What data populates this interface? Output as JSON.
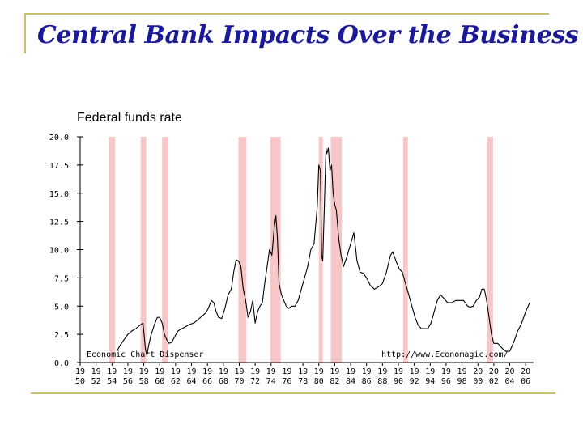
{
  "slide": {
    "title": "Central Bank Impacts Over the Business Cycle"
  },
  "colors": {
    "title": "#1a1a99",
    "rule": "#c9c16a",
    "recession": "#f7c6c6",
    "line": "#000000"
  },
  "chart_data": {
    "type": "line",
    "title": "Federal funds rate",
    "xlabel": "",
    "ylabel": "",
    "xlim": [
      1950,
      2007
    ],
    "ylim": [
      0,
      20
    ],
    "grid": false,
    "yticks": [
      "0.0",
      "2.5",
      "5.0",
      "7.5",
      "10.0",
      "12.5",
      "15.0",
      "17.5",
      "20.0"
    ],
    "xticks": [
      {
        "top": "19",
        "bottom": "50"
      },
      {
        "top": "19",
        "bottom": "52"
      },
      {
        "top": "19",
        "bottom": "54"
      },
      {
        "top": "19",
        "bottom": "56"
      },
      {
        "top": "19",
        "bottom": "58"
      },
      {
        "top": "19",
        "bottom": "60"
      },
      {
        "top": "19",
        "bottom": "62"
      },
      {
        "top": "19",
        "bottom": "64"
      },
      {
        "top": "19",
        "bottom": "66"
      },
      {
        "top": "19",
        "bottom": "68"
      },
      {
        "top": "19",
        "bottom": "70"
      },
      {
        "top": "19",
        "bottom": "72"
      },
      {
        "top": "19",
        "bottom": "74"
      },
      {
        "top": "19",
        "bottom": "76"
      },
      {
        "top": "19",
        "bottom": "78"
      },
      {
        "top": "19",
        "bottom": "80"
      },
      {
        "top": "19",
        "bottom": "82"
      },
      {
        "top": "19",
        "bottom": "84"
      },
      {
        "top": "19",
        "bottom": "86"
      },
      {
        "top": "19",
        "bottom": "88"
      },
      {
        "top": "19",
        "bottom": "90"
      },
      {
        "top": "19",
        "bottom": "92"
      },
      {
        "top": "19",
        "bottom": "94"
      },
      {
        "top": "19",
        "bottom": "96"
      },
      {
        "top": "19",
        "bottom": "98"
      },
      {
        "top": "20",
        "bottom": "00"
      },
      {
        "top": "20",
        "bottom": "02"
      },
      {
        "top": "20",
        "bottom": "04"
      },
      {
        "top": "20",
        "bottom": "06"
      }
    ],
    "annotations": {
      "source_left": "Economic Chart Dispenser",
      "source_right": "http://www.Economagic.com/"
    },
    "recessions": [
      [
        1953.6,
        1954.4
      ],
      [
        1957.6,
        1958.3
      ],
      [
        1960.3,
        1961.1
      ],
      [
        1969.9,
        1970.9
      ],
      [
        1973.9,
        1975.2
      ],
      [
        1980.0,
        1980.5
      ],
      [
        1981.5,
        1982.9
      ],
      [
        1990.6,
        1991.2
      ],
      [
        2001.2,
        2001.9
      ]
    ],
    "series": [
      {
        "x": [
          1954.6,
          1955.0,
          1955.5,
          1956.0,
          1956.5,
          1957.0,
          1957.5,
          1957.9,
          1958.2,
          1958.4,
          1958.6,
          1958.9,
          1959.3,
          1959.7,
          1960.0,
          1960.3,
          1960.6,
          1960.9,
          1961.2,
          1961.5,
          1961.9,
          1962.3,
          1962.8,
          1963.3,
          1963.8,
          1964.3,
          1964.8,
          1965.3,
          1965.8,
          1966.1,
          1966.5,
          1966.8,
          1967.1,
          1967.4,
          1967.8,
          1968.2,
          1968.6,
          1969.0,
          1969.3,
          1969.6,
          1969.9,
          1970.2,
          1970.5,
          1970.8,
          1971.1,
          1971.4,
          1971.7,
          1972.0,
          1972.3,
          1972.6,
          1972.9,
          1973.2,
          1973.5,
          1973.8,
          1974.1,
          1974.4,
          1974.6,
          1974.8,
          1975.0,
          1975.3,
          1975.6,
          1975.9,
          1976.2,
          1976.6,
          1977.0,
          1977.4,
          1977.8,
          1978.2,
          1978.6,
          1979.0,
          1979.4,
          1979.8,
          1980.0,
          1980.2,
          1980.35,
          1980.5,
          1980.7,
          1980.9,
          1981.0,
          1981.2,
          1981.4,
          1981.6,
          1981.8,
          1982.0,
          1982.2,
          1982.5,
          1982.8,
          1983.1,
          1983.5,
          1984.0,
          1984.4,
          1984.8,
          1985.2,
          1985.6,
          1986.0,
          1986.5,
          1987.0,
          1987.5,
          1988.0,
          1988.5,
          1989.0,
          1989.3,
          1989.7,
          1990.1,
          1990.5,
          1990.9,
          1991.3,
          1991.7,
          1992.1,
          1992.5,
          1992.9,
          1993.3,
          1993.7,
          1994.1,
          1994.5,
          1994.9,
          1995.3,
          1995.7,
          1996.2,
          1996.7,
          1997.2,
          1997.7,
          1998.2,
          1998.7,
          1999.0,
          1999.4,
          1999.8,
          2000.2,
          2000.5,
          2000.8,
          2001.1,
          2001.4,
          2001.7,
          2002.0,
          2002.5,
          2003.0,
          2003.5,
          2004.0,
          2004.5,
          2005.0,
          2005.5,
          2006.0,
          2006.5
        ],
        "y": [
          1.0,
          1.5,
          2.0,
          2.5,
          2.8,
          3.0,
          3.3,
          3.5,
          1.2,
          0.6,
          1.5,
          2.4,
          3.3,
          4.0,
          4.0,
          3.5,
          2.5,
          2.0,
          1.7,
          1.8,
          2.3,
          2.8,
          3.0,
          3.2,
          3.4,
          3.5,
          3.8,
          4.1,
          4.4,
          4.8,
          5.5,
          5.3,
          4.5,
          4.0,
          3.9,
          4.8,
          6.0,
          6.5,
          8.0,
          9.1,
          9.0,
          8.5,
          6.5,
          5.5,
          4.0,
          4.5,
          5.5,
          3.5,
          4.5,
          5.0,
          5.3,
          7.0,
          8.5,
          10.0,
          9.5,
          12.0,
          13.0,
          11.0,
          7.0,
          6.0,
          5.5,
          5.0,
          4.8,
          5.0,
          5.0,
          5.5,
          6.5,
          7.5,
          8.5,
          10.0,
          10.5,
          13.8,
          17.5,
          17.0,
          9.5,
          9.0,
          14.0,
          19.0,
          18.5,
          19.0,
          17.0,
          17.5,
          15.0,
          14.0,
          13.5,
          11.0,
          9.5,
          8.5,
          9.3,
          10.5,
          11.5,
          9.0,
          8.0,
          7.9,
          7.5,
          6.8,
          6.5,
          6.7,
          7.0,
          8.0,
          9.5,
          9.8,
          9.0,
          8.3,
          8.0,
          7.0,
          6.0,
          5.0,
          4.0,
          3.3,
          3.0,
          3.0,
          3.0,
          3.5,
          4.5,
          5.5,
          6.0,
          5.7,
          5.3,
          5.3,
          5.5,
          5.5,
          5.5,
          5.0,
          4.9,
          5.0,
          5.5,
          5.8,
          6.5,
          6.5,
          5.5,
          4.0,
          2.5,
          1.7,
          1.7,
          1.3,
          1.0,
          1.0,
          1.8,
          2.8,
          3.5,
          4.5,
          5.3
        ]
      }
    ]
  }
}
